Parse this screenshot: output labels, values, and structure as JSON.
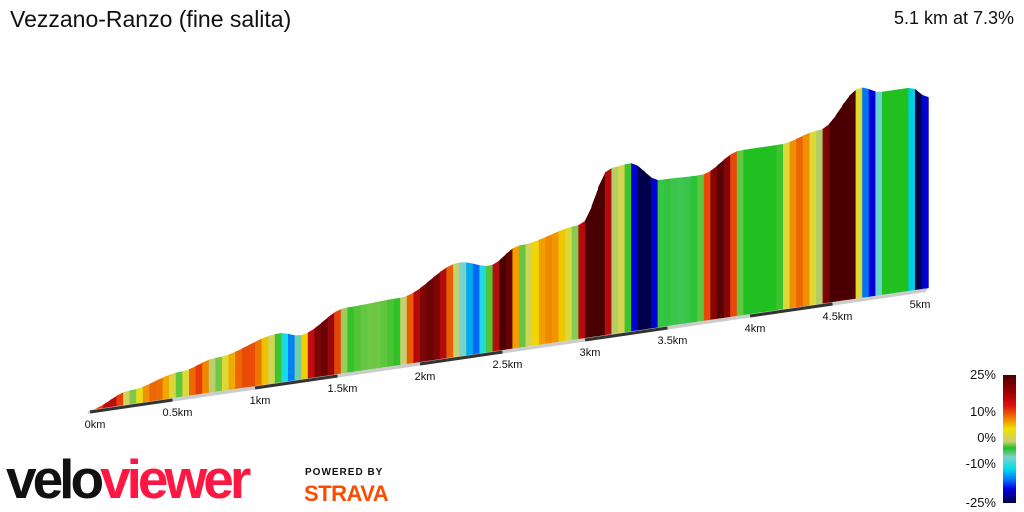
{
  "header": {
    "title": "Vezzano-Ranzo (fine salita)",
    "summary": "5.1 km at 7.3%"
  },
  "chart_data": {
    "type": "area",
    "title": "Vezzano-Ranzo (fine salita)",
    "distance_km": [
      0,
      0.24,
      0.55,
      0.76,
      1.15,
      1.27,
      1.55,
      1.88,
      2.24,
      2.42,
      2.6,
      2.97,
      3.15,
      3.27,
      3.45,
      3.7,
      3.94,
      4.18,
      4.42,
      4.67,
      4.79,
      4.97,
      5.08
    ],
    "relative_elevation_m": [
      0,
      27,
      49,
      66,
      96,
      86,
      127,
      131,
      183,
      168,
      199,
      222,
      324,
      328,
      287,
      285,
      322,
      322,
      339,
      410,
      396,
      396,
      372
    ],
    "x_ticks": [
      "0km",
      "0.5km",
      "1km",
      "1.5km",
      "2km",
      "2.5km",
      "3km",
      "3.5km",
      "4km",
      "4.5km",
      "5km"
    ],
    "x_range_km": [
      0,
      5.1
    ],
    "color_scale": {
      "label_ticks": [
        "25%",
        "10%",
        "0%",
        "-10%",
        "-25%"
      ],
      "range_percent": [
        -25,
        25
      ]
    }
  },
  "branding": {
    "logo_a": "velo",
    "logo_b": "viewer",
    "powered": "POWERED BY",
    "strava": "STRAVA"
  }
}
